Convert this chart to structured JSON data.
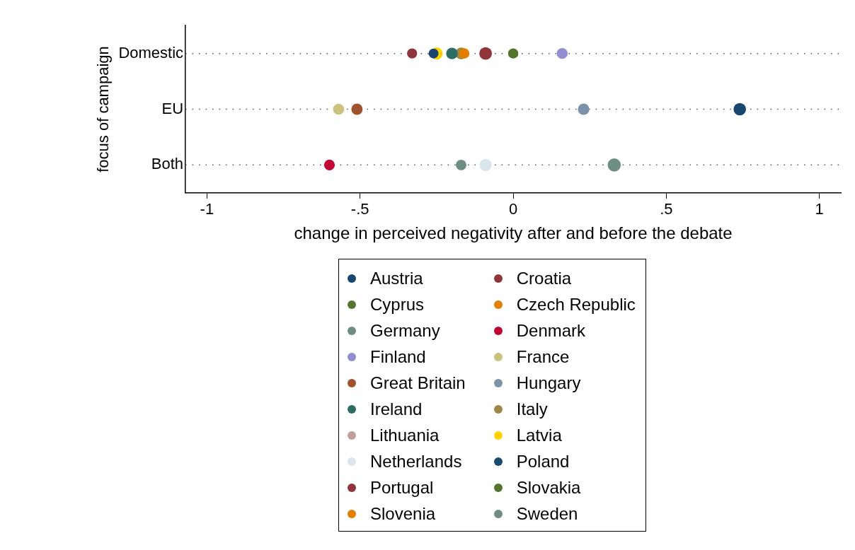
{
  "chart_data": {
    "type": "scatter",
    "xlabel": "change in perceived negativity after and before the debate",
    "ylabel": "focus of campaign",
    "categories": [
      "Domestic",
      "EU",
      "Both"
    ],
    "xlim": [
      -1.07,
      1.07
    ],
    "xticks": [
      {
        "value": -1,
        "label": "-1"
      },
      {
        "value": -0.5,
        "label": "-.5"
      },
      0,
      {
        "value": 0.5,
        "label": ".5"
      },
      1
    ],
    "grid": "y",
    "legend": "bottom",
    "marker": "circle",
    "orientation": "horizontal",
    "series": [
      {
        "name": "Austria",
        "color": "#1a476f",
        "values": [
          -0.26,
          null,
          null
        ]
      },
      {
        "name": "Croatia",
        "color": "#90353b",
        "values": [
          -0.33,
          null,
          null
        ]
      },
      {
        "name": "Cyprus",
        "color": "#55752f",
        "values": [
          0,
          null,
          null
        ]
      },
      {
        "name": "Czech Republic",
        "color": "#e37e00",
        "values": [
          -0.16,
          null,
          null
        ]
      },
      {
        "name": "Germany",
        "color": "#6e8e84",
        "values": [
          null,
          null,
          -0.17
        ]
      },
      {
        "name": "Denmark",
        "color": "#c10534",
        "values": [
          null,
          null,
          -0.6
        ]
      },
      {
        "name": "Finland",
        "color": "#938dd2",
        "values": [
          0.16,
          null,
          null
        ]
      },
      {
        "name": "France",
        "color": "#cac27e",
        "values": [
          null,
          -0.57,
          null
        ]
      },
      {
        "name": "Great Britain",
        "color": "#a0522d",
        "values": [
          null,
          -0.51,
          null
        ]
      },
      {
        "name": "Hungary",
        "color": "#7b92a8",
        "values": [
          null,
          0.23,
          null
        ]
      },
      {
        "name": "Ireland",
        "color": "#2d6d66",
        "values": [
          -0.2,
          null,
          null
        ]
      },
      {
        "name": "Italy",
        "color": "#9c8847",
        "values": [
          -0.17,
          null,
          null
        ]
      },
      {
        "name": "Lithuania",
        "color": "#bfa19c",
        "values": [
          null,
          null,
          null
        ]
      },
      {
        "name": "Latvia",
        "color": "#ffd200",
        "values": [
          -0.25,
          null,
          null
        ]
      },
      {
        "name": "Netherlands",
        "color": "#d9e6eb",
        "values": [
          null,
          null,
          -0.09
        ]
      },
      {
        "name": "Poland",
        "color": "#1a476f",
        "values": [
          null,
          0.74,
          null
        ]
      },
      {
        "name": "Portugal",
        "color": "#90353b",
        "values": [
          -0.09,
          null,
          null
        ]
      },
      {
        "name": "Slovakia",
        "color": "#55752f",
        "values": [
          null,
          null,
          null
        ]
      },
      {
        "name": "Slovenia",
        "color": "#e37e00",
        "values": [
          null,
          null,
          null
        ]
      },
      {
        "name": "Sweden",
        "color": "#6e8e84",
        "values": [
          null,
          null,
          0.33
        ]
      }
    ]
  }
}
